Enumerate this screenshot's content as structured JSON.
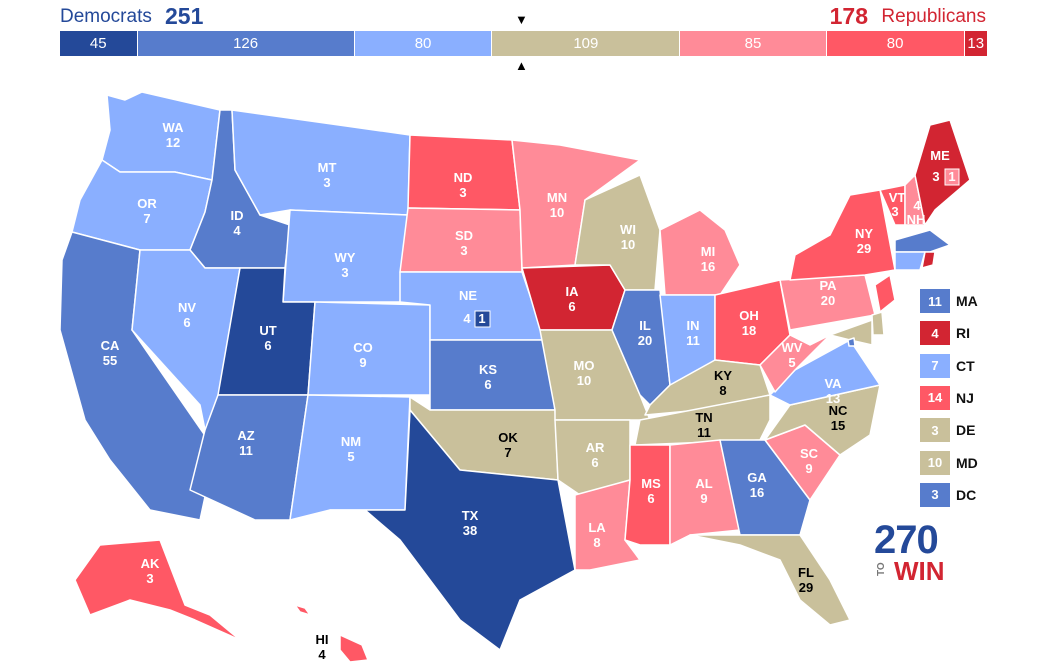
{
  "header": {
    "dem_name": "Democrats",
    "dem_total": "251",
    "rep_total": "178",
    "rep_name": "Republicans",
    "marker_top": "▼",
    "marker_bottom": "▲"
  },
  "colors": {
    "safe_dem": "#244999",
    "likely_dem": "#577ccc",
    "lean_dem": "#8aafff",
    "tossup": "#c9c09b",
    "lean_rep": "#ff8b98",
    "likely_rep": "#ff5865",
    "safe_rep": "#d22532"
  },
  "bar": [
    {
      "value": "45",
      "category": "safe_dem",
      "votes": 45
    },
    {
      "value": "126",
      "category": "likely_dem",
      "votes": 126
    },
    {
      "value": "80",
      "category": "lean_dem",
      "votes": 80
    },
    {
      "value": "109",
      "category": "tossup",
      "votes": 109
    },
    {
      "value": "85",
      "category": "lean_rep",
      "votes": 85
    },
    {
      "value": "80",
      "category": "likely_rep",
      "votes": 80
    },
    {
      "value": "13",
      "category": "safe_rep",
      "votes": 13
    }
  ],
  "states": {
    "WA": {
      "abbr": "WA",
      "ev": "12",
      "category": "lean_dem"
    },
    "OR": {
      "abbr": "OR",
      "ev": "7",
      "category": "lean_dem"
    },
    "CA": {
      "abbr": "CA",
      "ev": "55",
      "category": "likely_dem"
    },
    "ID": {
      "abbr": "ID",
      "ev": "4",
      "category": "likely_dem"
    },
    "NV": {
      "abbr": "NV",
      "ev": "6",
      "category": "lean_dem"
    },
    "MT": {
      "abbr": "MT",
      "ev": "3",
      "category": "lean_dem"
    },
    "WY": {
      "abbr": "WY",
      "ev": "3",
      "category": "lean_dem"
    },
    "UT": {
      "abbr": "UT",
      "ev": "6",
      "category": "safe_dem"
    },
    "AZ": {
      "abbr": "AZ",
      "ev": "11",
      "category": "likely_dem"
    },
    "CO": {
      "abbr": "CO",
      "ev": "9",
      "category": "lean_dem"
    },
    "NM": {
      "abbr": "NM",
      "ev": "5",
      "category": "lean_dem"
    },
    "ND": {
      "abbr": "ND",
      "ev": "3",
      "category": "likely_rep"
    },
    "SD": {
      "abbr": "SD",
      "ev": "3",
      "category": "lean_rep"
    },
    "NE": {
      "abbr": "NE",
      "ev": "4",
      "category": "lean_dem",
      "district_ev": "1"
    },
    "KS": {
      "abbr": "KS",
      "ev": "6",
      "category": "likely_dem"
    },
    "OK": {
      "abbr": "OK",
      "ev": "7",
      "category": "tossup"
    },
    "TX": {
      "abbr": "TX",
      "ev": "38",
      "category": "safe_dem"
    },
    "MN": {
      "abbr": "MN",
      "ev": "10",
      "category": "lean_rep"
    },
    "IA": {
      "abbr": "IA",
      "ev": "6",
      "category": "safe_rep"
    },
    "MO": {
      "abbr": "MO",
      "ev": "10",
      "category": "tossup"
    },
    "AR": {
      "abbr": "AR",
      "ev": "6",
      "category": "tossup"
    },
    "LA": {
      "abbr": "LA",
      "ev": "8",
      "category": "lean_rep"
    },
    "WI": {
      "abbr": "WI",
      "ev": "10",
      "category": "tossup"
    },
    "IL": {
      "abbr": "IL",
      "ev": "20",
      "category": "likely_dem"
    },
    "MI": {
      "abbr": "MI",
      "ev": "16",
      "category": "lean_rep"
    },
    "IN": {
      "abbr": "IN",
      "ev": "11",
      "category": "lean_dem"
    },
    "OH": {
      "abbr": "OH",
      "ev": "18",
      "category": "likely_rep"
    },
    "KY": {
      "abbr": "KY",
      "ev": "8",
      "category": "tossup"
    },
    "TN": {
      "abbr": "TN",
      "ev": "11",
      "category": "tossup"
    },
    "MS": {
      "abbr": "MS",
      "ev": "6",
      "category": "likely_rep"
    },
    "AL": {
      "abbr": "AL",
      "ev": "9",
      "category": "lean_rep"
    },
    "GA": {
      "abbr": "GA",
      "ev": "16",
      "category": "likely_dem"
    },
    "FL": {
      "abbr": "FL",
      "ev": "29",
      "category": "tossup"
    },
    "SC": {
      "abbr": "SC",
      "ev": "9",
      "category": "lean_rep"
    },
    "NC": {
      "abbr": "NC",
      "ev": "15",
      "category": "tossup"
    },
    "VA": {
      "abbr": "VA",
      "ev": "13",
      "category": "lean_dem"
    },
    "WV": {
      "abbr": "WV",
      "ev": "5",
      "category": "lean_rep"
    },
    "PA": {
      "abbr": "PA",
      "ev": "20",
      "category": "lean_rep"
    },
    "NY": {
      "abbr": "NY",
      "ev": "29",
      "category": "likely_rep"
    },
    "VT": {
      "abbr": "VT",
      "ev": "3",
      "category": "likely_rep"
    },
    "NH": {
      "abbr": "NH",
      "ev": "4",
      "category": "lean_rep"
    },
    "ME": {
      "abbr": "ME",
      "ev": "3",
      "category": "safe_rep",
      "district_ev": "1"
    },
    "AK": {
      "abbr": "AK",
      "ev": "3",
      "category": "likely_rep"
    },
    "HI": {
      "abbr": "HI",
      "ev": "4",
      "category": "likely_rep"
    }
  },
  "legend": [
    {
      "ev": "11",
      "abbr": "MA",
      "category": "likely_dem"
    },
    {
      "ev": "4",
      "abbr": "RI",
      "category": "safe_rep"
    },
    {
      "ev": "7",
      "abbr": "CT",
      "category": "lean_dem"
    },
    {
      "ev": "14",
      "abbr": "NJ",
      "category": "likely_rep"
    },
    {
      "ev": "3",
      "abbr": "DE",
      "category": "tossup"
    },
    {
      "ev": "10",
      "abbr": "MD",
      "category": "tossup"
    },
    {
      "ev": "3",
      "abbr": "DC",
      "category": "likely_dem"
    }
  ],
  "logo": {
    "number": "270",
    "to": "TO",
    "win": "WIN"
  }
}
